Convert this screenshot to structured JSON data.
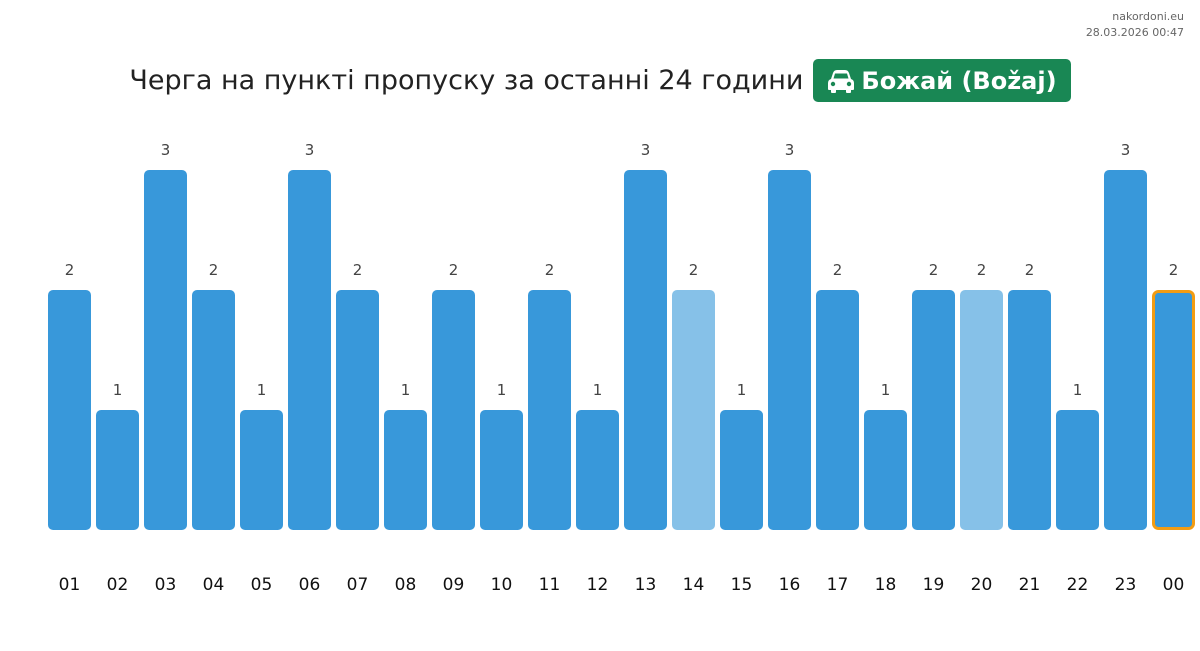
{
  "site": {
    "domain": "nakordoni.eu",
    "timestamp": "28.03.2026 00:47"
  },
  "header": {
    "title": "Черга на пункті пропуску за останні 24 години",
    "checkpoint_name": "Божай (Božaj)",
    "checkpoint_icon": "car-icon",
    "badge_color": "#198754"
  },
  "chart_data": {
    "type": "bar",
    "categories": [
      "01",
      "02",
      "03",
      "04",
      "05",
      "06",
      "07",
      "08",
      "09",
      "10",
      "11",
      "12",
      "13",
      "14",
      "15",
      "16",
      "17",
      "18",
      "19",
      "20",
      "21",
      "22",
      "23",
      "00"
    ],
    "values": [
      2,
      1,
      3,
      2,
      1,
      3,
      2,
      1,
      2,
      1,
      2,
      1,
      3,
      2,
      1,
      3,
      2,
      1,
      2,
      2,
      2,
      1,
      3,
      2
    ],
    "highlighted_light": [
      "14",
      "20"
    ],
    "current": "00",
    "ylim": [
      0,
      3
    ],
    "grid": false,
    "colors": {
      "bar": "#3898da",
      "bar_light": "#86c1e8",
      "current_border": "#f39c12",
      "value_label": "#444444",
      "tick_label": "#111111"
    }
  }
}
